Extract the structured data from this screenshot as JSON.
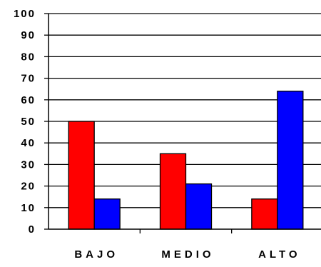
{
  "chart_data": {
    "type": "bar",
    "categories": [
      "BAJO",
      "MEDIO",
      "ALTO"
    ],
    "series": [
      {
        "values": [
          50,
          35,
          14
        ],
        "color": "#ff0000"
      },
      {
        "values": [
          14,
          21,
          64
        ],
        "color": "#0000ff"
      }
    ],
    "ylim": [
      0,
      100
    ],
    "yticks": [
      "0",
      "10",
      "20",
      "30",
      "40",
      "50",
      "60",
      "70",
      "80",
      "90",
      "100"
    ],
    "grid": true,
    "legend": "none"
  }
}
